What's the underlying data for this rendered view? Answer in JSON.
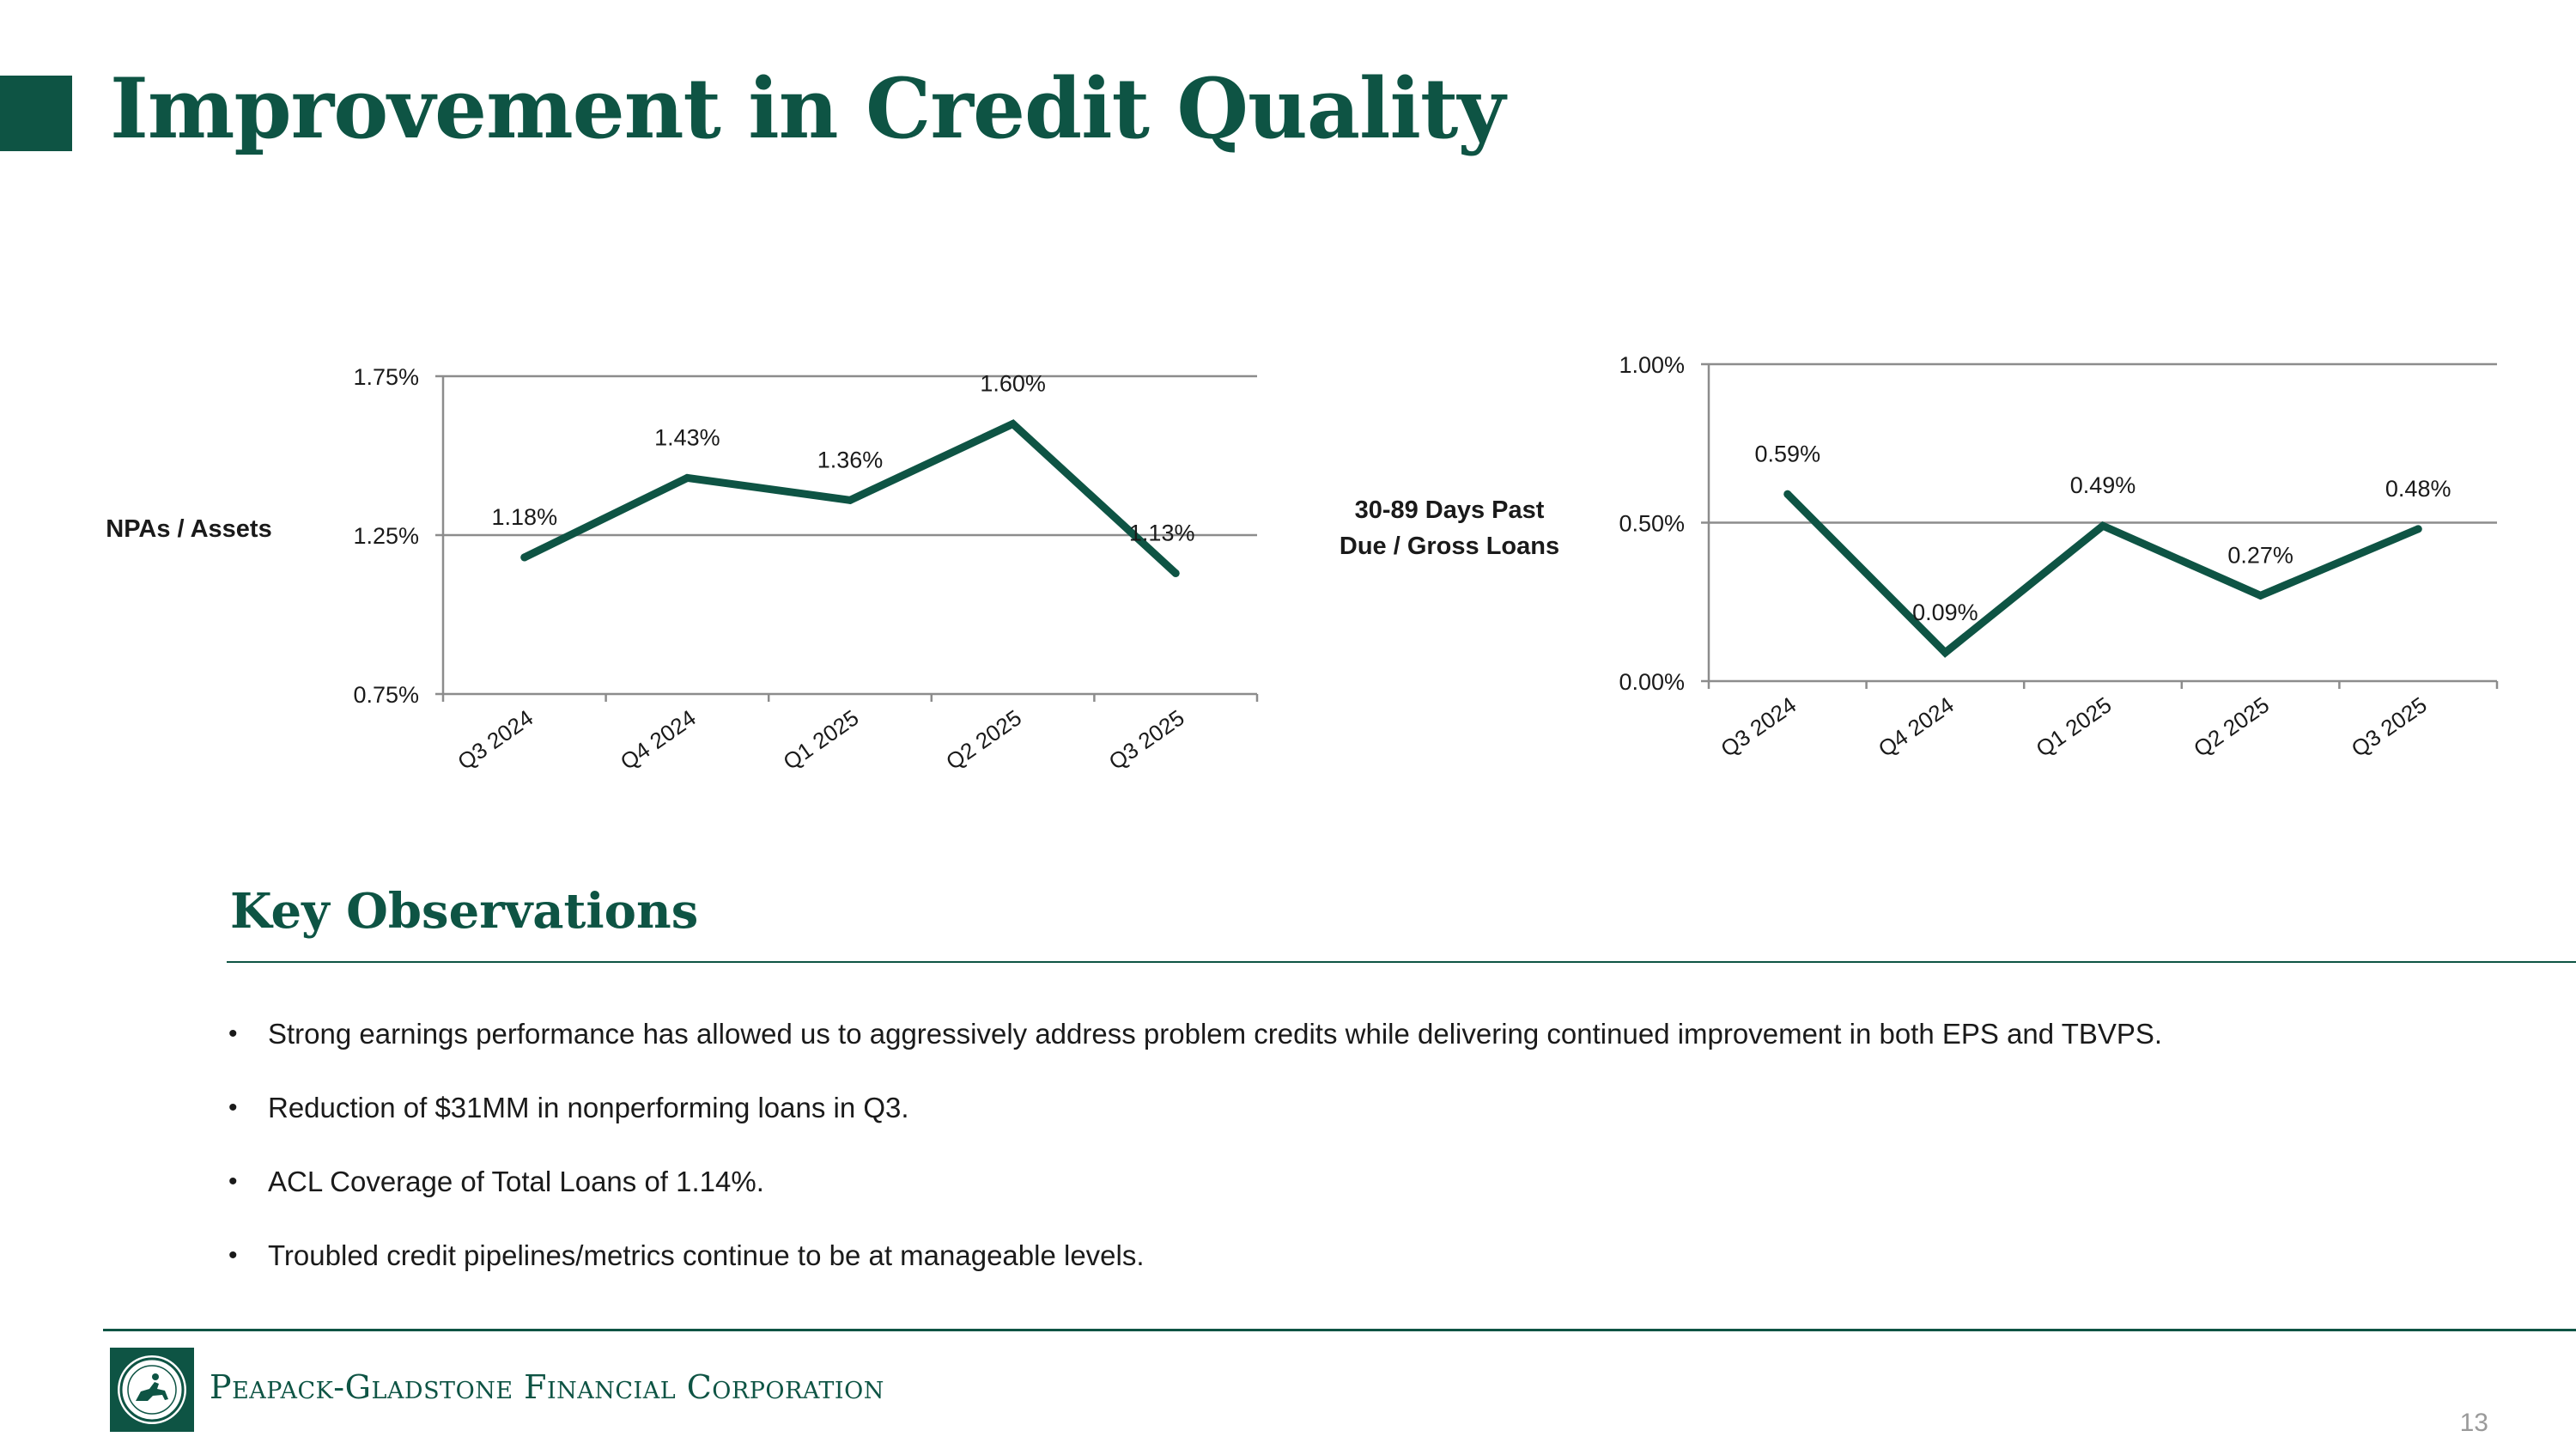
{
  "slide": {
    "title": "Improvement in Credit Quality",
    "page_number": "13"
  },
  "colors": {
    "brand_green": "#0e5444",
    "gridline": "#8c8c8c",
    "text": "#1a1a1a"
  },
  "chart_data": [
    {
      "type": "line",
      "title": "NPAs / Assets",
      "categories": [
        "Q3 2024",
        "Q4 2024",
        "Q1 2025",
        "Q2 2025",
        "Q3 2025"
      ],
      "values": [
        1.18,
        1.43,
        1.36,
        1.6,
        1.13
      ],
      "value_labels": [
        "1.18%",
        "1.43%",
        "1.36%",
        "1.60%",
        "1.13%"
      ],
      "yticks": [
        0.75,
        1.25,
        1.75
      ],
      "ytick_labels": [
        "0.75%",
        "1.25%",
        "1.75%"
      ],
      "ylim": [
        0.75,
        1.75
      ],
      "grid": true
    },
    {
      "type": "line",
      "title": "30-89 Days Past Due / Gross Loans",
      "title_lines": [
        "30-89 Days Past",
        "Due / Gross Loans"
      ],
      "categories": [
        "Q3 2024",
        "Q4 2024",
        "Q1 2025",
        "Q2 2025",
        "Q3 2025"
      ],
      "values": [
        0.59,
        0.09,
        0.49,
        0.27,
        0.48
      ],
      "value_labels": [
        "0.59%",
        "0.09%",
        "0.49%",
        "0.27%",
        "0.48%"
      ],
      "yticks": [
        0.0,
        0.5,
        1.0
      ],
      "ytick_labels": [
        "0.00%",
        "0.50%",
        "1.00%"
      ],
      "ylim": [
        0.0,
        1.0
      ],
      "grid": true
    }
  ],
  "observations": {
    "heading": "Key Observations",
    "bullets": [
      "Strong earnings performance has allowed us to aggressively address problem credits while delivering continued improvement in both EPS and TBVPS.",
      "Reduction of $31MM in nonperforming loans in Q3.",
      "ACL Coverage of Total Loans of 1.14%.",
      "Troubled credit pipelines/metrics continue to be at manageable levels."
    ],
    "bullet_symbol": "•"
  },
  "footer": {
    "company_name": "Peapack-Gladstone Financial Corporation",
    "logo_icon": "horse-and-rider-seal-icon"
  }
}
